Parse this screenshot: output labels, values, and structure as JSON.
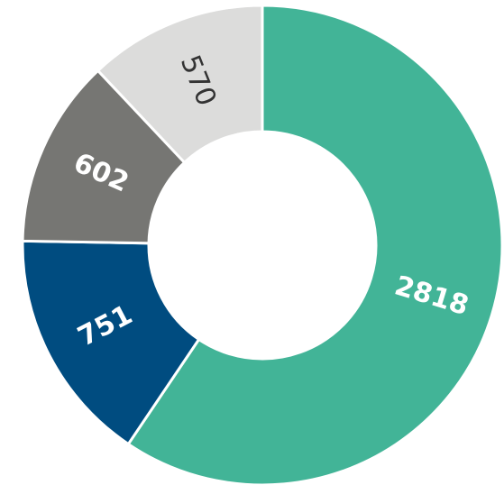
{
  "chart_data": {
    "type": "donut",
    "categories": [
      null,
      null,
      null,
      null
    ],
    "values": [
      2818,
      751,
      602,
      570
    ],
    "colors": [
      "#42b497",
      "#004c80",
      "#767673",
      "#dcdcdb"
    ],
    "label_colors": [
      "#ffffff",
      "#ffffff",
      "#ffffff",
      "#333333"
    ]
  }
}
